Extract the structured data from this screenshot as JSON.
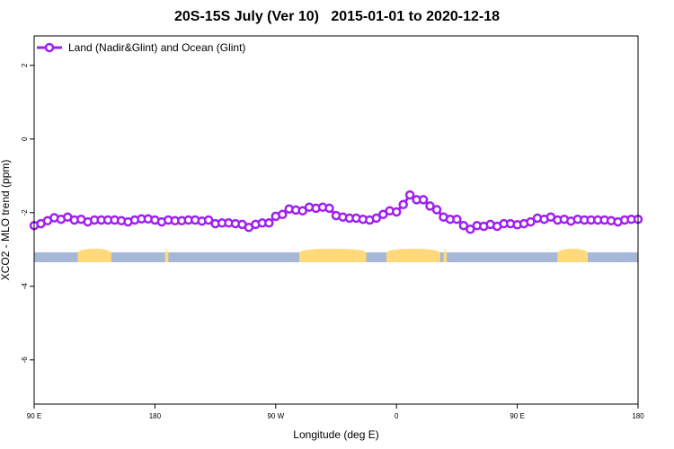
{
  "chart_data": {
    "type": "line",
    "title": "20S-15S July (Ver 10)   2015-01-01 to 2020-12-18",
    "xlabel": "Longitude (deg E)",
    "ylabel": "XCO2 - MLO trend (ppm)",
    "xlim": [
      90,
      450
    ],
    "ylim": [
      -7.2,
      2.8
    ],
    "x_ticks": [
      {
        "value": 90,
        "label": "90 E"
      },
      {
        "value": 162,
        "label": "180"
      },
      {
        "value": 234,
        "label": "90 W"
      },
      {
        "value": 306,
        "label": "0"
      },
      {
        "value": 378,
        "label": "90 E"
      },
      {
        "value": 450,
        "label": "180"
      }
    ],
    "y_ticks": [
      2,
      0,
      -2,
      -4,
      -6
    ],
    "legend_position": "top-left",
    "colors": {
      "series": "#a020f0",
      "ocean_band": "#a5b8d8",
      "land_band": "#ffd97a"
    },
    "series": [
      {
        "name": "Land (Nadir&Glint) and Ocean (Glint)",
        "x": [
          90.0,
          94.0,
          98.0,
          102.0,
          106.0,
          110.0,
          114.0,
          118.0,
          122.0,
          126.0,
          130.0,
          134.0,
          138.0,
          142.0,
          146.0,
          150.0,
          154.0,
          158.0,
          162.0,
          166.0,
          170.0,
          174.0,
          178.0,
          182.0,
          186.0,
          190.0,
          194.0,
          198.0,
          202.0,
          206.0,
          210.0,
          214.0,
          218.0,
          222.0,
          226.0,
          230.0,
          234.0,
          238.0,
          242.0,
          246.0,
          250.0,
          254.0,
          258.0,
          262.0,
          266.0,
          270.0,
          274.0,
          278.0,
          282.0,
          286.0,
          290.0,
          294.0,
          298.0,
          302.0,
          306.0,
          310.0,
          314.0,
          318.0,
          322.0,
          326.0,
          330.0,
          334.0,
          338.0,
          342.0,
          346.0,
          350.0,
          354.0,
          358.0,
          362.0,
          366.0,
          370.0,
          374.0,
          378.0,
          382.0,
          386.0,
          390.0,
          394.0,
          398.0,
          402.0,
          406.0,
          410.0,
          414.0,
          418.0,
          422.0,
          426.0,
          430.0,
          434.0,
          438.0,
          442.0,
          446.0,
          450.0
        ],
        "y": [
          -2.35,
          -2.3,
          -2.22,
          -2.14,
          -2.18,
          -2.12,
          -2.2,
          -2.18,
          -2.25,
          -2.2,
          -2.2,
          -2.2,
          -2.2,
          -2.22,
          -2.25,
          -2.2,
          -2.17,
          -2.17,
          -2.2,
          -2.25,
          -2.2,
          -2.22,
          -2.22,
          -2.2,
          -2.2,
          -2.23,
          -2.2,
          -2.3,
          -2.28,
          -2.28,
          -2.3,
          -2.32,
          -2.4,
          -2.32,
          -2.28,
          -2.28,
          -2.1,
          -2.05,
          -1.9,
          -1.93,
          -1.95,
          -1.85,
          -1.88,
          -1.85,
          -1.88,
          -2.08,
          -2.12,
          -2.15,
          -2.15,
          -2.18,
          -2.2,
          -2.15,
          -2.05,
          -1.95,
          -1.98,
          -1.78,
          -1.52,
          -1.65,
          -1.65,
          -1.82,
          -1.92,
          -2.12,
          -2.18,
          -2.18,
          -2.35,
          -2.45,
          -2.35,
          -2.37,
          -2.32,
          -2.37,
          -2.3,
          -2.3,
          -2.33,
          -2.3,
          -2.25,
          -2.15,
          -2.18,
          -2.12,
          -2.2,
          -2.18,
          -2.23,
          -2.18,
          -2.2,
          -2.2,
          -2.2,
          -2.2,
          -2.22,
          -2.25,
          -2.2,
          -2.18,
          -2.18
        ]
      }
    ],
    "surface_band": {
      "y": -3.2,
      "land_ranges": [
        [
          116,
          136
        ],
        [
          168,
          170
        ],
        [
          248,
          288
        ],
        [
          300,
          332
        ],
        [
          334,
          336
        ],
        [
          402,
          420
        ]
      ]
    }
  }
}
